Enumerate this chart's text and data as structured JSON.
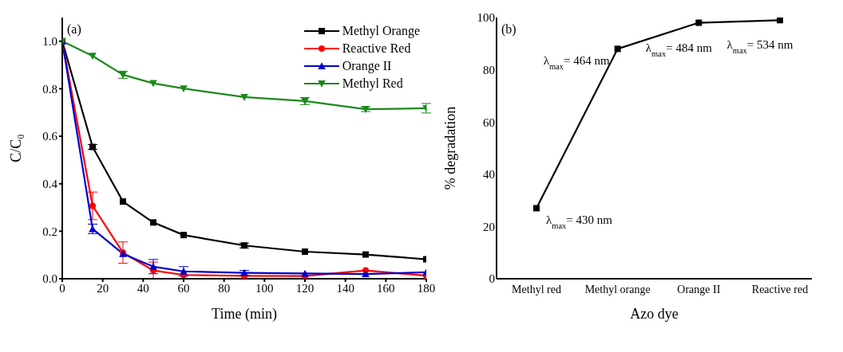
{
  "chart_data": [
    {
      "type": "line",
      "title": "(a)",
      "xlabel": "Time (min)",
      "ylabel": "C/C₀",
      "x": [
        0,
        15,
        30,
        45,
        60,
        90,
        120,
        150,
        180
      ],
      "xlim": [
        0,
        180
      ],
      "xticks": [
        0,
        20,
        40,
        60,
        80,
        100,
        120,
        140,
        160,
        180
      ],
      "ylim": [
        0,
        1.1
      ],
      "yticks": [
        {
          "value": 0,
          "label": "0.0"
        },
        {
          "value": 0.2,
          "label": "0.2"
        },
        {
          "value": 0.4,
          "label": "0.4"
        },
        {
          "value": 0.6,
          "label": "0.6"
        },
        {
          "value": 0.8,
          "label": "0.8"
        },
        {
          "value": 1,
          "label": "1.0"
        }
      ],
      "grid": false,
      "legend": "top right",
      "series": [
        {
          "name": "Methyl Orange",
          "color": "#000000",
          "marker": "square",
          "values": [
            1.0,
            0.555,
            0.325,
            0.237,
            0.184,
            0.14,
            0.114,
            0.102,
            0.082
          ],
          "errors": [
            null,
            0.01,
            null,
            null,
            null,
            0.01,
            null,
            null,
            null
          ]
        },
        {
          "name": "Reactive Red",
          "color": "#ff0000",
          "marker": "circle",
          "values": [
            1.0,
            0.307,
            0.11,
            0.035,
            0.016,
            0.012,
            0.011,
            0.035,
            0.013
          ],
          "errors": [
            null,
            0.058,
            0.045,
            0.035,
            null,
            null,
            null,
            null,
            null
          ]
        },
        {
          "name": "Orange II",
          "color": "#0000cc",
          "marker": "triangle",
          "values": [
            1.0,
            0.21,
            0.105,
            0.051,
            0.031,
            0.025,
            0.022,
            0.02,
            0.027
          ],
          "errors": [
            null,
            0.02,
            null,
            0.03,
            0.02,
            0.01,
            null,
            null,
            null
          ]
        },
        {
          "name": "Methyl Red",
          "color": "#1a8a1a",
          "marker": "triangle-down",
          "values": [
            1.0,
            0.938,
            0.859,
            0.823,
            0.801,
            0.765,
            0.748,
            0.714,
            0.718
          ],
          "errors": [
            null,
            null,
            0.015,
            null,
            null,
            null,
            0.015,
            0.01,
            0.02
          ]
        }
      ]
    },
    {
      "type": "line",
      "title": "(b)",
      "xlabel": "Azo dye",
      "ylabel": "% degradation",
      "categories": [
        "Methyl red",
        "Methyl orange",
        "Orange II",
        "Reactive red"
      ],
      "ylim": [
        0,
        100
      ],
      "yticks": [
        0,
        20,
        40,
        60,
        80,
        100
      ],
      "grid": false,
      "legend": false,
      "marker": "square",
      "series": [
        {
          "color": "#000000",
          "values": [
            27,
            88,
            98,
            99
          ]
        }
      ],
      "annotations": [
        {
          "text": "λ$_{max}$= 430 nm",
          "x": "Methyl red",
          "y": 27
        },
        {
          "text": "λ$_{max}$= 464 nm",
          "x": "Methyl orange",
          "y": 88
        },
        {
          "text": "λ$_{max}$= 484 nm",
          "x": "Orange II",
          "y": 98
        },
        {
          "text": "λ$_{max}$= 534 nm",
          "x": "Reactive red",
          "y": 99
        }
      ]
    }
  ]
}
